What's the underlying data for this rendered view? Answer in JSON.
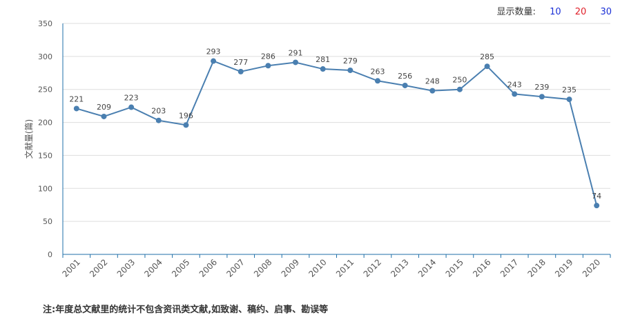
{
  "display_count": {
    "label": "显示数量:",
    "options": [
      {
        "label": "10",
        "color": "#1a2fd6"
      },
      {
        "label": "20",
        "color": "#e0202a"
      },
      {
        "label": "30",
        "color": "#1a2fd6"
      }
    ]
  },
  "footnote": "注:年度总文献里的统计不包含资讯类文献,如致谢、稿约、启事、勘误等",
  "colors": {
    "line": "#4a7fb0",
    "grid": "#dddddd",
    "axis": "#1f6fa8",
    "text": "#555555"
  },
  "chart_data": {
    "type": "line",
    "title": "",
    "xlabel": "",
    "ylabel": "文献量(篇)",
    "ylim": [
      0,
      350
    ],
    "yticks": [
      0,
      50,
      100,
      150,
      200,
      250,
      300,
      350
    ],
    "grid": true,
    "categories": [
      "2001",
      "2002",
      "2003",
      "2004",
      "2005",
      "2006",
      "2007",
      "2008",
      "2009",
      "2010",
      "2011",
      "2012",
      "2013",
      "2014",
      "2015",
      "2016",
      "2017",
      "2018",
      "2019",
      "2020"
    ],
    "series": [
      {
        "values": [
          221,
          209,
          223,
          203,
          196,
          293,
          277,
          286,
          291,
          281,
          279,
          263,
          256,
          248,
          250,
          285,
          243,
          239,
          235,
          74
        ]
      }
    ]
  }
}
